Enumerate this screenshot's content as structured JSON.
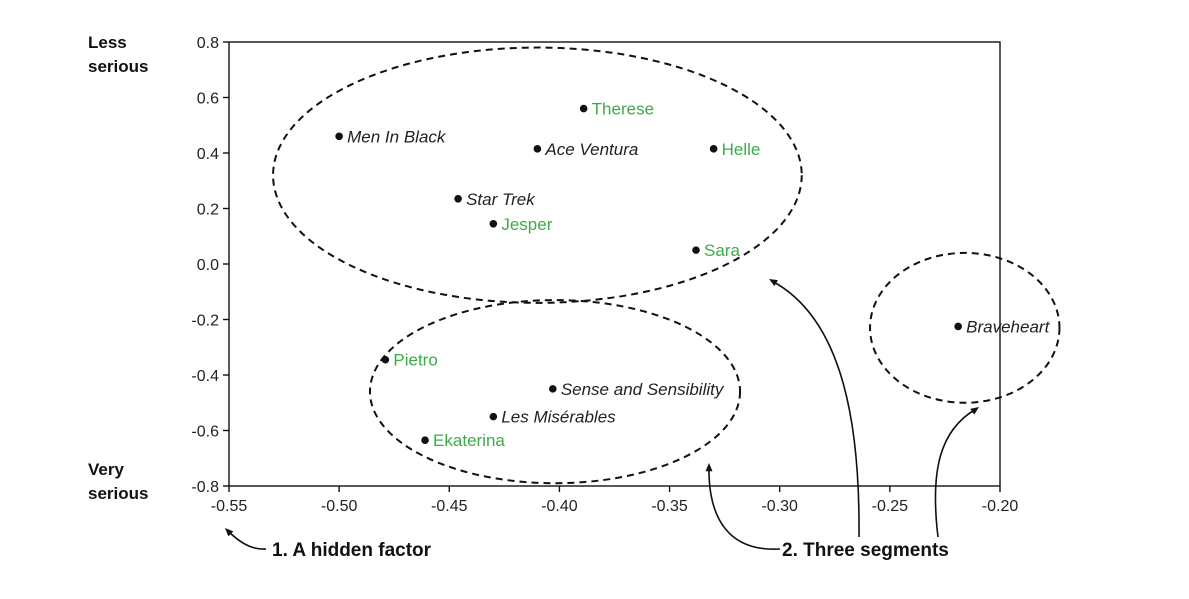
{
  "chart_data": {
    "type": "scatter",
    "title": "",
    "xlabel": "",
    "ylabel": "",
    "xlim": [
      -0.55,
      -0.2
    ],
    "ylim": [
      -0.8,
      0.8
    ],
    "xticks": [
      "-0.55",
      "-0.50",
      "-0.45",
      "-0.40",
      "-0.35",
      "-0.30",
      "-0.25",
      "-0.20"
    ],
    "yticks": [
      "0.8",
      "0.6",
      "0.4",
      "0.2",
      "0.0",
      "-0.2",
      "-0.4",
      "-0.6",
      "-0.8"
    ],
    "y_top_label": [
      "Less",
      "serious"
    ],
    "y_bottom_label": [
      "Very",
      "serious"
    ],
    "grid": false,
    "colors": {
      "movie": "#222222",
      "person": "#3dab47",
      "marker": "#111111"
    },
    "points": [
      {
        "label": "Therese",
        "kind": "person",
        "x": -0.389,
        "y": 0.56
      },
      {
        "label": "Men In Black",
        "kind": "movie",
        "x": -0.5,
        "y": 0.46
      },
      {
        "label": "Ace Ventura",
        "kind": "movie",
        "x": -0.41,
        "y": 0.415
      },
      {
        "label": "Helle",
        "kind": "person",
        "x": -0.33,
        "y": 0.415
      },
      {
        "label": "Star Trek",
        "kind": "movie",
        "x": -0.446,
        "y": 0.235
      },
      {
        "label": "Jesper",
        "kind": "person",
        "x": -0.43,
        "y": 0.145
      },
      {
        "label": "Sara",
        "kind": "person",
        "x": -0.338,
        "y": 0.05
      },
      {
        "label": "Braveheart",
        "kind": "movie",
        "x": -0.219,
        "y": -0.225
      },
      {
        "label": "Pietro",
        "kind": "person",
        "x": -0.479,
        "y": -0.345
      },
      {
        "label": "Sense and Sensibility",
        "kind": "movie",
        "x": -0.403,
        "y": -0.45
      },
      {
        "label": "Les Misérables",
        "kind": "movie",
        "x": -0.43,
        "y": -0.55
      },
      {
        "label": "Ekaterina",
        "kind": "person",
        "x": -0.461,
        "y": -0.635
      }
    ],
    "clusters": [
      {
        "cx": -0.41,
        "cy": 0.32,
        "rx": 0.12,
        "ry": 0.46
      },
      {
        "cx": -0.402,
        "cy": -0.46,
        "rx": 0.084,
        "ry": 0.33
      },
      {
        "cx": -0.216,
        "cy": -0.23,
        "rx": 0.043,
        "ry": 0.27
      }
    ],
    "annotations": [
      "1.  A hidden factor",
      "2. Three segments"
    ]
  }
}
